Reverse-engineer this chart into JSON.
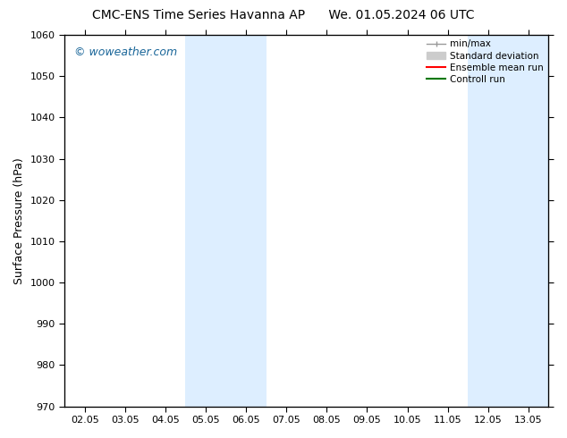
{
  "title_left": "CMC-ENS Time Series Havanna AP",
  "title_right": "We. 01.05.2024 06 UTC",
  "ylabel": "Surface Pressure (hPa)",
  "ylim": [
    970,
    1060
  ],
  "yticks": [
    970,
    980,
    990,
    1000,
    1010,
    1020,
    1030,
    1040,
    1050,
    1060
  ],
  "xtick_labels": [
    "02.05",
    "03.05",
    "04.05",
    "05.05",
    "06.05",
    "07.05",
    "08.05",
    "09.05",
    "10.05",
    "11.05",
    "12.05",
    "13.05"
  ],
  "xtick_positions": [
    0,
    1,
    2,
    3,
    4,
    5,
    6,
    7,
    8,
    9,
    10,
    11
  ],
  "xlim": [
    -0.5,
    11.5
  ],
  "shaded_regions": [
    {
      "xmin": 2.5,
      "xmax": 4.5,
      "color": "#ddeeff"
    },
    {
      "xmin": 9.5,
      "xmax": 11.5,
      "color": "#ddeeff"
    }
  ],
  "watermark": "© woweather.com",
  "watermark_color": "#1a6699",
  "legend_entries": [
    {
      "label": "min/max",
      "color": "#999999",
      "linestyle": "-",
      "linewidth": 1.0
    },
    {
      "label": "Standard deviation",
      "color": "#cccccc",
      "linestyle": "-",
      "linewidth": 5
    },
    {
      "label": "Ensemble mean run",
      "color": "#ff0000",
      "linestyle": "-",
      "linewidth": 1.5
    },
    {
      "label": "Controll run",
      "color": "#007700",
      "linestyle": "-",
      "linewidth": 1.5
    }
  ],
  "bg_color": "#ffffff",
  "ylabel_fontsize": 9,
  "title_fontsize": 10,
  "tick_fontsize": 8
}
